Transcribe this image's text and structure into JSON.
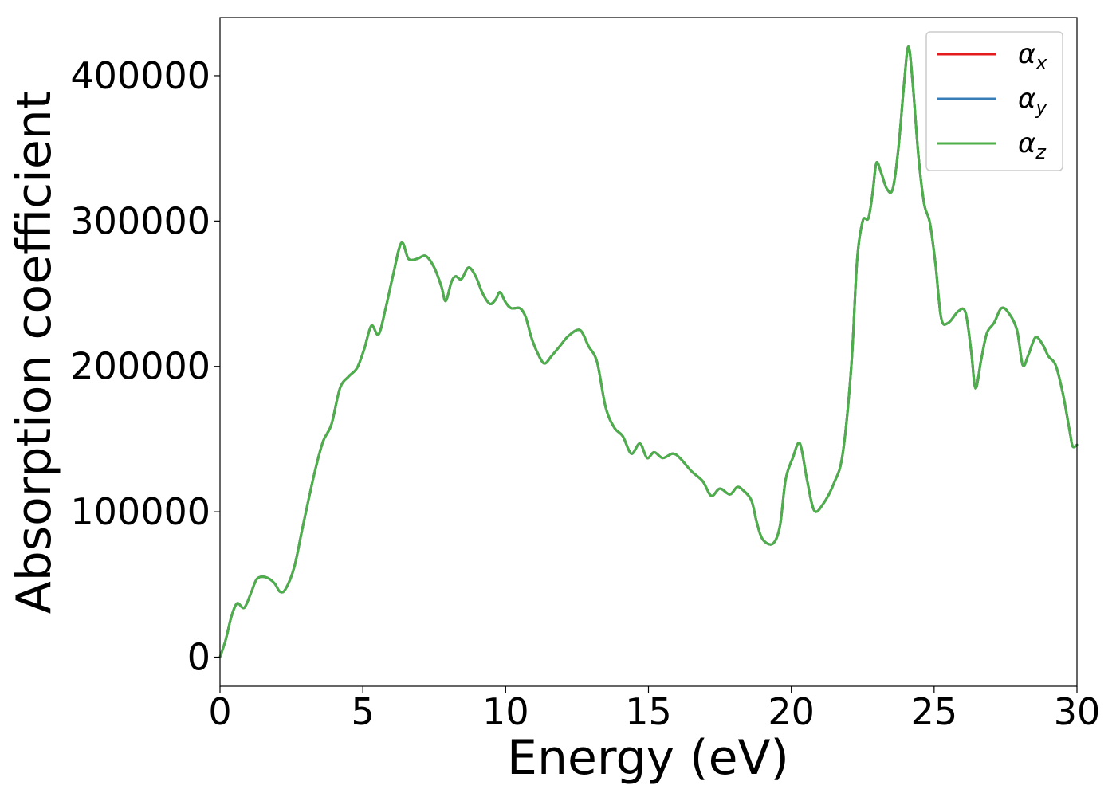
{
  "chart_data": {
    "type": "line",
    "title": "",
    "xlabel": "Energy (eV)",
    "ylabel": "Absorption coefficient",
    "xlim": [
      0,
      30
    ],
    "ylim": [
      -20000,
      440000
    ],
    "x_ticks": [
      0,
      5,
      10,
      15,
      20,
      25,
      30
    ],
    "x_tick_labels": [
      "0",
      "5",
      "10",
      "15",
      "20",
      "25",
      "30"
    ],
    "y_ticks": [
      0,
      100000,
      200000,
      300000,
      400000
    ],
    "y_tick_labels": [
      "0",
      "100000",
      "200000",
      "300000",
      "400000"
    ],
    "grid": false,
    "legend": "top-right",
    "series": [
      {
        "name": "αx",
        "name_base": "α",
        "name_sub": "x",
        "color": "#e41a1c",
        "points": [
          [
            0,
            0
          ],
          [
            0.2,
            12000
          ],
          [
            0.4,
            28000
          ],
          [
            0.6,
            37000
          ],
          [
            0.85,
            34000
          ],
          [
            1.1,
            45000
          ],
          [
            1.3,
            54000
          ],
          [
            1.6,
            55000
          ],
          [
            1.9,
            51000
          ],
          [
            2.1,
            45000
          ],
          [
            2.3,
            47000
          ],
          [
            2.6,
            62000
          ],
          [
            2.9,
            90000
          ],
          [
            3.3,
            126000
          ],
          [
            3.6,
            148000
          ],
          [
            3.9,
            160000
          ],
          [
            4.2,
            185000
          ],
          [
            4.5,
            193000
          ],
          [
            4.8,
            199000
          ],
          [
            5.05,
            212000
          ],
          [
            5.3,
            228000
          ],
          [
            5.55,
            222000
          ],
          [
            5.8,
            240000
          ],
          [
            6.05,
            262000
          ],
          [
            6.35,
            285000
          ],
          [
            6.6,
            274000
          ],
          [
            6.9,
            274000
          ],
          [
            7.2,
            276000
          ],
          [
            7.5,
            268000
          ],
          [
            7.75,
            255000
          ],
          [
            7.9,
            245000
          ],
          [
            8.1,
            258000
          ],
          [
            8.25,
            262000
          ],
          [
            8.45,
            260000
          ],
          [
            8.7,
            268000
          ],
          [
            8.95,
            262000
          ],
          [
            9.2,
            250000
          ],
          [
            9.45,
            243000
          ],
          [
            9.65,
            246000
          ],
          [
            9.8,
            251000
          ],
          [
            10.0,
            244000
          ],
          [
            10.2,
            240000
          ],
          [
            10.5,
            240000
          ],
          [
            10.7,
            234000
          ],
          [
            10.9,
            220000
          ],
          [
            11.1,
            210000
          ],
          [
            11.35,
            202000
          ],
          [
            11.6,
            207000
          ],
          [
            11.9,
            214000
          ],
          [
            12.2,
            221000
          ],
          [
            12.6,
            225000
          ],
          [
            12.9,
            214000
          ],
          [
            13.2,
            203000
          ],
          [
            13.5,
            172000
          ],
          [
            13.8,
            158000
          ],
          [
            14.1,
            152000
          ],
          [
            14.4,
            140000
          ],
          [
            14.7,
            147000
          ],
          [
            14.95,
            137000
          ],
          [
            15.2,
            141000
          ],
          [
            15.5,
            137000
          ],
          [
            15.85,
            140000
          ],
          [
            16.1,
            137000
          ],
          [
            16.5,
            128000
          ],
          [
            16.9,
            121000
          ],
          [
            17.2,
            111000
          ],
          [
            17.5,
            116000
          ],
          [
            17.85,
            112000
          ],
          [
            18.1,
            117000
          ],
          [
            18.3,
            115000
          ],
          [
            18.6,
            108000
          ],
          [
            18.8,
            92000
          ],
          [
            19.0,
            81000
          ],
          [
            19.35,
            78000
          ],
          [
            19.6,
            90000
          ],
          [
            19.8,
            122000
          ],
          [
            20.05,
            137000
          ],
          [
            20.3,
            147000
          ],
          [
            20.55,
            122000
          ],
          [
            20.8,
            101000
          ],
          [
            21.1,
            105000
          ],
          [
            21.5,
            120000
          ],
          [
            21.8,
            140000
          ],
          [
            22.1,
            200000
          ],
          [
            22.3,
            272000
          ],
          [
            22.5,
            300000
          ],
          [
            22.7,
            302000
          ],
          [
            22.85,
            320000
          ],
          [
            22.98,
            340000
          ],
          [
            23.15,
            333000
          ],
          [
            23.35,
            322000
          ],
          [
            23.55,
            322000
          ],
          [
            23.75,
            350000
          ],
          [
            23.95,
            395000
          ],
          [
            24.1,
            420000
          ],
          [
            24.25,
            395000
          ],
          [
            24.45,
            345000
          ],
          [
            24.65,
            312000
          ],
          [
            24.85,
            299000
          ],
          [
            25.05,
            270000
          ],
          [
            25.25,
            233000
          ],
          [
            25.5,
            230000
          ],
          [
            25.85,
            238000
          ],
          [
            26.1,
            237000
          ],
          [
            26.3,
            210000
          ],
          [
            26.45,
            185000
          ],
          [
            26.65,
            205000
          ],
          [
            26.85,
            223000
          ],
          [
            27.1,
            230000
          ],
          [
            27.35,
            240000
          ],
          [
            27.6,
            237000
          ],
          [
            27.9,
            225000
          ],
          [
            28.1,
            201000
          ],
          [
            28.3,
            208000
          ],
          [
            28.55,
            220000
          ],
          [
            28.8,
            215000
          ],
          [
            29.0,
            207000
          ],
          [
            29.25,
            201000
          ],
          [
            29.5,
            182000
          ],
          [
            29.75,
            155000
          ],
          [
            29.85,
            145000
          ],
          [
            30.0,
            146000
          ]
        ]
      },
      {
        "name": "αy",
        "name_base": "α",
        "name_sub": "y",
        "color": "#377eb8",
        "same_as_series": 0
      },
      {
        "name": "αz",
        "name_base": "α",
        "name_sub": "z",
        "color": "#4daf4a",
        "same_as_series": 0
      }
    ]
  }
}
